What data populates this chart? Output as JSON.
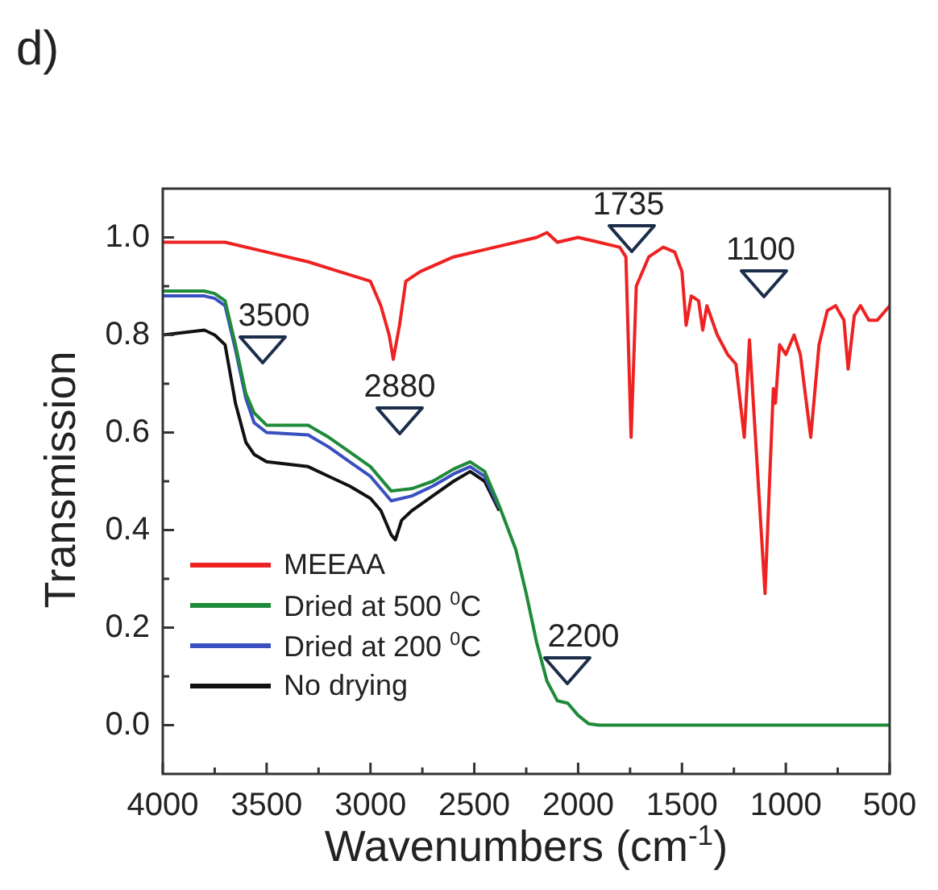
{
  "chart_data": {
    "type": "line",
    "title": "d)",
    "xlabel": "Wavenumbers (cm$^{-1}$)",
    "ylabel": "Transmission",
    "xlim": [
      4000,
      500
    ],
    "ylim": [
      -0.1,
      1.1
    ],
    "xticks": [
      4000,
      {
        "value": 3750,
        "label": null
      },
      3500,
      {
        "value": 3250,
        "label": null
      },
      3000,
      {
        "value": 2750,
        "label": null
      },
      2500,
      {
        "value": 2250,
        "label": null
      },
      2000,
      {
        "value": 1750,
        "label": null
      },
      1500,
      {
        "value": 1250,
        "label": null
      },
      1000,
      {
        "value": 750,
        "label": null
      },
      500
    ],
    "yticks": [
      {
        "value": 0,
        "label": "0.0"
      },
      {
        "value": 0.1,
        "label": null
      },
      0.2,
      {
        "value": 0.3,
        "label": null
      },
      0.4,
      {
        "value": 0.5,
        "label": null
      },
      0.6,
      {
        "value": 0.7,
        "label": null
      },
      0.8,
      {
        "value": 0.9,
        "label": null
      },
      {
        "value": 1,
        "label": "1.0"
      }
    ],
    "grid": false,
    "legend": "bottom left",
    "marker": "none",
    "line_style": "solid",
    "series": [
      {
        "name": "MEEAA",
        "color": "#ee2222",
        "x": [
          4000,
          3800,
          3700,
          3500,
          3300,
          3150,
          3000,
          2950,
          2910,
          2890,
          2860,
          2830,
          2760,
          2600,
          2400,
          2200,
          2150,
          2100,
          2000,
          1900,
          1800,
          1770,
          1745,
          1720,
          1660,
          1590,
          1535,
          1500,
          1480,
          1455,
          1420,
          1400,
          1380,
          1330,
          1280,
          1240,
          1200,
          1175,
          1100,
          1060,
          1050,
          1030,
          1000,
          960,
          930,
          880,
          840,
          800,
          760,
          720,
          700,
          670,
          640,
          600,
          560,
          500
        ],
        "values": [
          0.99,
          0.99,
          0.99,
          0.97,
          0.95,
          0.93,
          0.91,
          0.86,
          0.8,
          0.75,
          0.82,
          0.91,
          0.93,
          0.96,
          0.98,
          1.0,
          1.01,
          0.99,
          1.0,
          0.99,
          0.98,
          0.96,
          0.59,
          0.9,
          0.96,
          0.98,
          0.97,
          0.93,
          0.82,
          0.88,
          0.87,
          0.81,
          0.86,
          0.8,
          0.76,
          0.74,
          0.59,
          0.79,
          0.27,
          0.69,
          0.66,
          0.78,
          0.76,
          0.8,
          0.76,
          0.59,
          0.78,
          0.85,
          0.86,
          0.83,
          0.73,
          0.84,
          0.86,
          0.83,
          0.83,
          0.86
        ]
      },
      {
        "name": "Dried at 500 $^{0}$C",
        "color": "#1f8a3a",
        "x": [
          4000,
          3900,
          3800,
          3750,
          3700,
          3650,
          3600,
          3560,
          3500,
          3400,
          3300,
          3200,
          3100,
          3000,
          2900,
          2800,
          2700,
          2600,
          2520,
          2450,
          2380,
          2300,
          2250,
          2200,
          2150,
          2100,
          2050,
          2000,
          1950,
          1900,
          500
        ],
        "values": [
          0.89,
          0.89,
          0.89,
          0.885,
          0.87,
          0.78,
          0.68,
          0.64,
          0.615,
          0.615,
          0.615,
          0.59,
          0.56,
          0.53,
          0.48,
          0.485,
          0.5,
          0.525,
          0.54,
          0.52,
          0.45,
          0.36,
          0.27,
          0.17,
          0.09,
          0.05,
          0.045,
          0.02,
          0.003,
          0,
          0
        ]
      },
      {
        "name": "Dried at 200 $^{0}$C",
        "color": "#3a4fc0",
        "x": [
          4000,
          3800,
          3750,
          3700,
          3650,
          3600,
          3560,
          3500,
          3300,
          3200,
          3100,
          3000,
          2900,
          2800,
          2700,
          2600,
          2520,
          2450,
          2380
        ],
        "values": [
          0.88,
          0.88,
          0.875,
          0.86,
          0.77,
          0.67,
          0.62,
          0.6,
          0.595,
          0.57,
          0.54,
          0.51,
          0.46,
          0.47,
          0.49,
          0.515,
          0.53,
          0.51,
          0.445
        ]
      },
      {
        "name": "No drying",
        "color": "#111111",
        "x": [
          4000,
          3800,
          3750,
          3700,
          3650,
          3600,
          3560,
          3500,
          3400,
          3300,
          3200,
          3100,
          3000,
          2950,
          2900,
          2880,
          2850,
          2800,
          2700,
          2600,
          2520,
          2450,
          2380
        ],
        "values": [
          0.8,
          0.81,
          0.8,
          0.78,
          0.66,
          0.58,
          0.555,
          0.54,
          0.535,
          0.53,
          0.51,
          0.49,
          0.465,
          0.44,
          0.39,
          0.38,
          0.42,
          0.44,
          0.47,
          0.5,
          0.52,
          0.5,
          0.44
        ]
      }
    ],
    "annotations": [
      "3500",
      "2880",
      "1735",
      "1100",
      "2200"
    ]
  }
}
